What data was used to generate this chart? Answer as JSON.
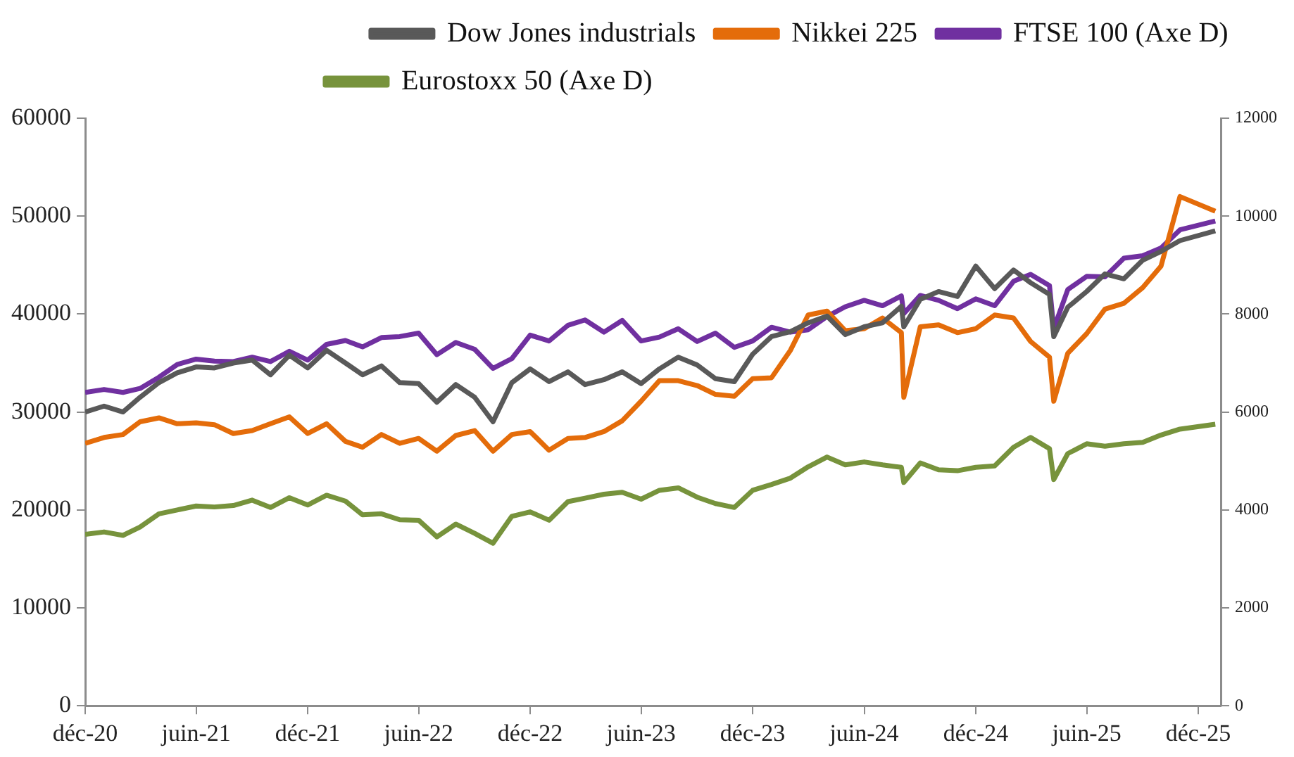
{
  "chart_data": {
    "type": "line",
    "x": [
      "2020-12-01",
      "2021-01-01",
      "2021-02-01",
      "2021-03-01",
      "2021-04-01",
      "2021-05-01",
      "2021-06-01",
      "2021-07-01",
      "2021-08-01",
      "2021-09-01",
      "2021-10-01",
      "2021-11-01",
      "2021-12-01",
      "2022-01-01",
      "2022-02-01",
      "2022-03-01",
      "2022-04-01",
      "2022-05-01",
      "2022-06-01",
      "2022-07-01",
      "2022-08-01",
      "2022-09-01",
      "2022-10-01",
      "2022-11-01",
      "2022-12-01",
      "2023-01-01",
      "2023-02-01",
      "2023-03-01",
      "2023-04-01",
      "2023-05-01",
      "2023-06-01",
      "2023-07-01",
      "2023-08-01",
      "2023-09-01",
      "2023-10-01",
      "2023-11-01",
      "2023-12-01",
      "2024-01-01",
      "2024-02-01",
      "2024-03-01",
      "2024-04-01",
      "2024-05-01",
      "2024-06-01",
      "2024-07-01",
      "2024-08-01",
      "2024-08-05",
      "2024-09-01",
      "2024-10-01",
      "2024-11-01",
      "2024-12-01",
      "2025-01-01",
      "2025-02-01",
      "2025-03-01",
      "2025-04-01",
      "2025-04-08",
      "2025-05-01",
      "2025-06-01",
      "2025-07-01",
      "2025-08-01",
      "2025-09-01",
      "2025-10-01",
      "2025-11-01",
      "2025-12-29"
    ],
    "series": [
      {
        "name": "Dow Jones industrials",
        "color": "#595959",
        "values": [
          30000,
          30600,
          30000,
          31500,
          33000,
          34000,
          34600,
          34500,
          35000,
          35300,
          33800,
          35800,
          34500,
          36300,
          35000,
          33800,
          34700,
          33000,
          32900,
          31000,
          32800,
          31500,
          29000,
          33000,
          34400,
          33100,
          34100,
          32800,
          33300,
          34100,
          32900,
          34400,
          35600,
          34800,
          33400,
          33100,
          35900,
          37700,
          38200,
          39100,
          39800,
          37900,
          38700,
          39100,
          40800,
          38700,
          41500,
          42300,
          41800,
          44900,
          42600,
          44500,
          43200,
          42000,
          37700,
          40700,
          42300,
          44100,
          43600,
          45500,
          46400,
          47500,
          48500
        ]
      },
      {
        "name": "Nikkei 225",
        "color": "#e46c0a",
        "values": [
          26800,
          27400,
          27700,
          29000,
          29400,
          28800,
          28900,
          28700,
          27800,
          28100,
          28800,
          29500,
          27800,
          28800,
          27000,
          26400,
          27700,
          26800,
          27300,
          26000,
          27600,
          28100,
          26000,
          27700,
          28000,
          26100,
          27300,
          27400,
          28000,
          29100,
          31100,
          33200,
          33200,
          32700,
          31800,
          31600,
          33400,
          33500,
          36300,
          39900,
          40300,
          38300,
          38500,
          39600,
          38100,
          31500,
          38700,
          38900,
          38100,
          38500,
          39900,
          39600,
          37200,
          35600,
          31100,
          36000,
          38000,
          40500,
          41100,
          42700,
          44900,
          52000,
          50500
        ]
      },
      {
        "name": "FTSE 100 (Axe D)",
        "color": "#7030a0",
        "axis": "y2",
        "values": [
          6400,
          6460,
          6400,
          6480,
          6710,
          6970,
          7080,
          7040,
          7030,
          7120,
          7030,
          7240,
          7060,
          7380,
          7460,
          7330,
          7520,
          7540,
          7610,
          7170,
          7420,
          7280,
          6890,
          7090,
          7570,
          7450,
          7770,
          7880,
          7630,
          7870,
          7450,
          7530,
          7700,
          7440,
          7610,
          7320,
          7450,
          7730,
          7630,
          7680,
          7950,
          8150,
          8280,
          8170,
          8370,
          8010,
          8380,
          8280,
          8110,
          8310,
          8170,
          8670,
          8810,
          8580,
          7700,
          8500,
          8770,
          8760,
          9140,
          9190,
          9350,
          9720,
          9900
        ]
      },
      {
        "name": "Eurostoxx 50 (Axe D)",
        "color": "#77933c",
        "axis": "y2",
        "values": [
          3500,
          3550,
          3480,
          3650,
          3920,
          4000,
          4080,
          4060,
          4090,
          4200,
          4050,
          4250,
          4100,
          4300,
          4180,
          3900,
          3920,
          3800,
          3790,
          3450,
          3710,
          3520,
          3320,
          3870,
          3960,
          3790,
          4170,
          4240,
          4320,
          4360,
          4220,
          4400,
          4450,
          4260,
          4130,
          4050,
          4400,
          4520,
          4650,
          4880,
          5080,
          4920,
          4980,
          4920,
          4870,
          4560,
          4960,
          4820,
          4800,
          4870,
          4900,
          5280,
          5480,
          5250,
          4620,
          5150,
          5350,
          5300,
          5350,
          5380,
          5530,
          5650,
          5750
        ]
      }
    ],
    "xlim": [
      "2020-12-01",
      "2026-01-07"
    ],
    "xticks": [
      {
        "value": "2020-12-01",
        "label": "déc-20"
      },
      {
        "value": "2021-06-01",
        "label": "juin-21"
      },
      {
        "value": "2021-12-01",
        "label": "déc-21"
      },
      {
        "value": "2022-06-01",
        "label": "juin-22"
      },
      {
        "value": "2022-12-01",
        "label": "déc-22"
      },
      {
        "value": "2023-06-01",
        "label": "juin-23"
      },
      {
        "value": "2023-12-01",
        "label": "déc-23"
      },
      {
        "value": "2024-06-01",
        "label": "juin-24"
      },
      {
        "value": "2024-12-01",
        "label": "déc-24"
      },
      {
        "value": "2025-06-01",
        "label": "juin-25"
      },
      {
        "value": "2025-12-01",
        "label": "déc-25"
      }
    ],
    "ylim": [
      0,
      60000
    ],
    "yticks": [
      0,
      10000,
      20000,
      30000,
      40000,
      50000,
      60000
    ],
    "y2lim": [
      0,
      12000
    ],
    "y2ticks": [
      0,
      2000,
      4000,
      6000,
      8000,
      10000,
      12000
    ],
    "grid": false,
    "legend": "top",
    "marker": "none",
    "line_style": "solid"
  }
}
